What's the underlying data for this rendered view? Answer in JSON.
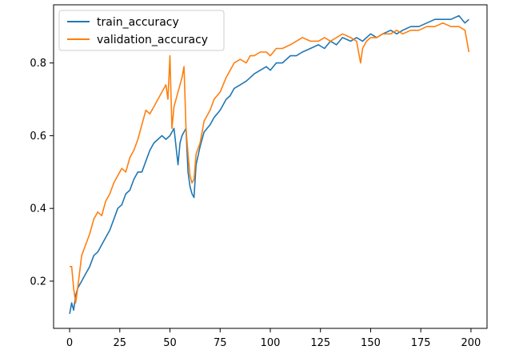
{
  "chart_data": {
    "type": "line",
    "title": "",
    "xlabel": "",
    "ylabel": "",
    "xlim": [
      -8,
      208
    ],
    "ylim": [
      0.07,
      0.96
    ],
    "xticks": [
      0,
      25,
      50,
      75,
      100,
      125,
      150,
      175,
      200
    ],
    "yticks": [
      0.2,
      0.4,
      0.6,
      0.8
    ],
    "xtick_labels": [
      "0",
      "25",
      "50",
      "75",
      "100",
      "125",
      "150",
      "175",
      "200"
    ],
    "ytick_labels": [
      "0.2",
      "0.4",
      "0.6",
      "0.8"
    ],
    "grid": false,
    "legend_position": "top-left",
    "series": [
      {
        "name": "train_accuracy",
        "color": "#1f77b4",
        "x": [
          0,
          1,
          2,
          3,
          4,
          5,
          6,
          8,
          10,
          12,
          14,
          16,
          18,
          20,
          22,
          24,
          26,
          28,
          30,
          32,
          34,
          36,
          38,
          40,
          42,
          44,
          46,
          48,
          50,
          52,
          54,
          55,
          56,
          58,
          59,
          60,
          61,
          62,
          63,
          65,
          67,
          70,
          72,
          75,
          78,
          80,
          82,
          85,
          88,
          90,
          92,
          95,
          98,
          100,
          103,
          106,
          110,
          113,
          116,
          120,
          124,
          127,
          130,
          133,
          136,
          140,
          143,
          146,
          150,
          153,
          156,
          160,
          163,
          166,
          170,
          174,
          178,
          182,
          186,
          190,
          194,
          197,
          199
        ],
        "y": [
          0.11,
          0.14,
          0.12,
          0.16,
          0.18,
          0.19,
          0.2,
          0.22,
          0.24,
          0.27,
          0.28,
          0.3,
          0.32,
          0.34,
          0.37,
          0.4,
          0.41,
          0.44,
          0.45,
          0.48,
          0.5,
          0.5,
          0.53,
          0.56,
          0.58,
          0.59,
          0.6,
          0.59,
          0.6,
          0.62,
          0.52,
          0.58,
          0.6,
          0.62,
          0.5,
          0.46,
          0.44,
          0.43,
          0.52,
          0.57,
          0.61,
          0.63,
          0.65,
          0.67,
          0.7,
          0.71,
          0.73,
          0.74,
          0.75,
          0.76,
          0.77,
          0.78,
          0.79,
          0.78,
          0.8,
          0.8,
          0.82,
          0.82,
          0.83,
          0.84,
          0.85,
          0.84,
          0.86,
          0.85,
          0.87,
          0.86,
          0.87,
          0.86,
          0.88,
          0.87,
          0.88,
          0.89,
          0.88,
          0.89,
          0.9,
          0.9,
          0.91,
          0.92,
          0.92,
          0.92,
          0.93,
          0.91,
          0.92
        ]
      },
      {
        "name": "validation_accuracy",
        "color": "#ff7f0e",
        "x": [
          0,
          1,
          2,
          3,
          4,
          6,
          8,
          10,
          12,
          14,
          16,
          18,
          20,
          22,
          24,
          26,
          28,
          30,
          32,
          34,
          36,
          38,
          40,
          42,
          44,
          46,
          48,
          49,
          50,
          51,
          52,
          54,
          56,
          57,
          58,
          59,
          60,
          61,
          62,
          63,
          65,
          67,
          70,
          72,
          75,
          78,
          80,
          82,
          85,
          88,
          90,
          92,
          95,
          98,
          100,
          103,
          106,
          110,
          113,
          116,
          120,
          124,
          127,
          130,
          133,
          136,
          140,
          143,
          145,
          146,
          148,
          150,
          153,
          156,
          160,
          163,
          166,
          170,
          174,
          178,
          182,
          186,
          190,
          194,
          197,
          199
        ],
        "y": [
          0.24,
          0.24,
          0.18,
          0.14,
          0.18,
          0.27,
          0.3,
          0.33,
          0.37,
          0.39,
          0.38,
          0.42,
          0.44,
          0.47,
          0.49,
          0.51,
          0.5,
          0.54,
          0.56,
          0.59,
          0.63,
          0.67,
          0.66,
          0.68,
          0.7,
          0.72,
          0.74,
          0.7,
          0.82,
          0.62,
          0.68,
          0.72,
          0.76,
          0.79,
          0.62,
          0.55,
          0.49,
          0.47,
          0.48,
          0.55,
          0.58,
          0.64,
          0.67,
          0.7,
          0.72,
          0.76,
          0.78,
          0.8,
          0.81,
          0.8,
          0.82,
          0.82,
          0.83,
          0.83,
          0.82,
          0.84,
          0.84,
          0.85,
          0.86,
          0.87,
          0.86,
          0.86,
          0.87,
          0.86,
          0.87,
          0.88,
          0.87,
          0.86,
          0.8,
          0.84,
          0.86,
          0.87,
          0.87,
          0.88,
          0.88,
          0.89,
          0.88,
          0.89,
          0.89,
          0.9,
          0.9,
          0.91,
          0.9,
          0.9,
          0.89,
          0.83
        ]
      }
    ]
  }
}
